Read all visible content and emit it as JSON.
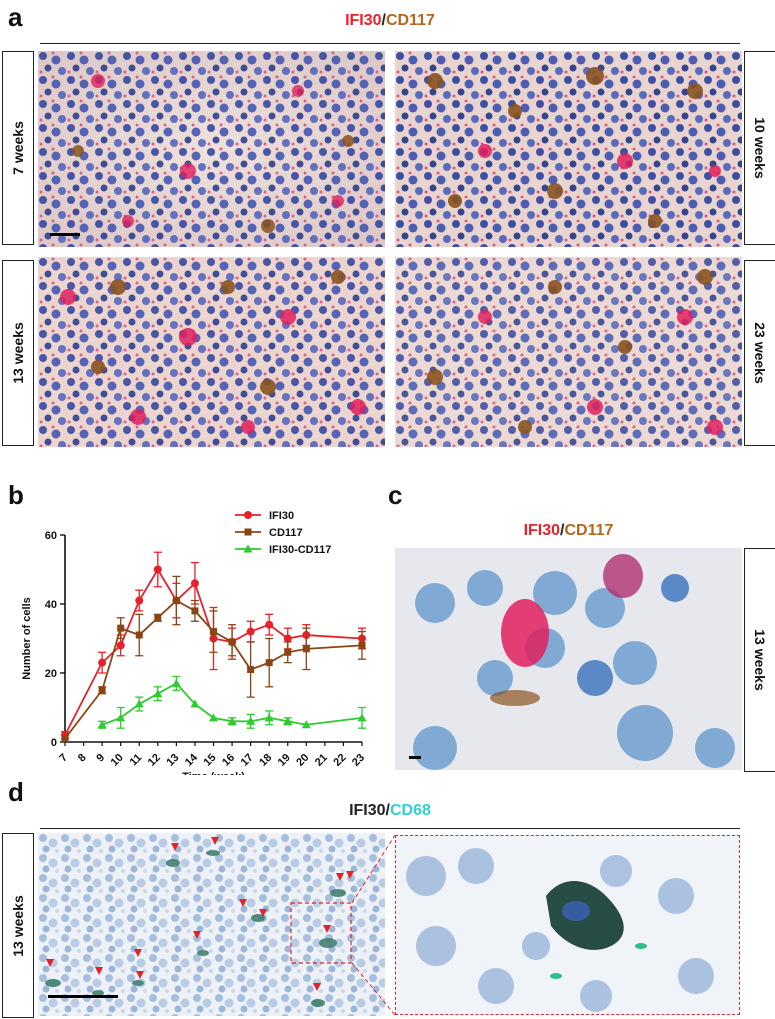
{
  "panels": {
    "a": {
      "letter": "a",
      "title_parts": [
        "IFI30",
        "/",
        "CD117"
      ],
      "labels": [
        "7 weeks",
        "10 weeks",
        "13 weeks",
        "23 weeks"
      ]
    },
    "b": {
      "letter": "b"
    },
    "c": {
      "letter": "c",
      "title_parts": [
        "IFI30",
        "/",
        "CD117"
      ],
      "label": "13 weeks"
    },
    "d": {
      "letter": "d",
      "title_parts": [
        "IFI30",
        "/",
        "CD68"
      ],
      "label": "13 weeks"
    }
  },
  "colors": {
    "ifi30": "#e8202a",
    "cd117": "#8b4513",
    "ifi30_cd117": "#2ecc2e",
    "cd68": "#2fd0d0",
    "arrow": "#e8202a"
  },
  "chart_data": {
    "type": "line",
    "xlabel": "Time (week)",
    "ylabel": "Number of cells",
    "xlim": [
      7,
      23
    ],
    "ylim": [
      0,
      60
    ],
    "xticks": [
      7,
      8,
      9,
      10,
      11,
      12,
      13,
      14,
      15,
      16,
      17,
      18,
      19,
      20,
      21,
      22,
      23
    ],
    "yticks": [
      0,
      20,
      40,
      60
    ],
    "legend_position": "top-right",
    "series": [
      {
        "name": "IFI30",
        "marker": "circle",
        "color": "#e8202a",
        "x": [
          7,
          9,
          10,
          11,
          12,
          13,
          14,
          15,
          16,
          17,
          18,
          19,
          20,
          23
        ],
        "y": [
          2,
          23,
          28,
          41,
          50,
          41,
          46,
          30,
          29,
          32,
          34,
          30,
          31,
          30
        ],
        "err": [
          1,
          3,
          3,
          3,
          5,
          5,
          6,
          9,
          4,
          3,
          3,
          3,
          3,
          3
        ]
      },
      {
        "name": "CD117",
        "marker": "square",
        "color": "#8b4513",
        "x": [
          7,
          9,
          10,
          11,
          12,
          13,
          14,
          15,
          16,
          17,
          18,
          19,
          20,
          23
        ],
        "y": [
          1,
          15,
          33,
          31,
          36,
          41,
          38,
          32,
          29,
          21,
          23,
          26,
          27,
          28
        ],
        "err": [
          0,
          1,
          3,
          6,
          1,
          7,
          3,
          6,
          5,
          8,
          7,
          3,
          6,
          4
        ]
      },
      {
        "name": "IFI30-CD117",
        "marker": "triangle",
        "color": "#2ecc2e",
        "x": [
          9,
          10,
          11,
          12,
          13,
          14,
          15,
          16,
          17,
          18,
          19,
          20,
          23
        ],
        "y": [
          5,
          7,
          11,
          14,
          17,
          11,
          7,
          6,
          6,
          7,
          6,
          5,
          7
        ],
        "err": [
          1,
          3,
          2,
          2,
          2,
          0,
          0,
          1,
          2,
          2,
          1,
          0,
          3
        ]
      }
    ]
  }
}
